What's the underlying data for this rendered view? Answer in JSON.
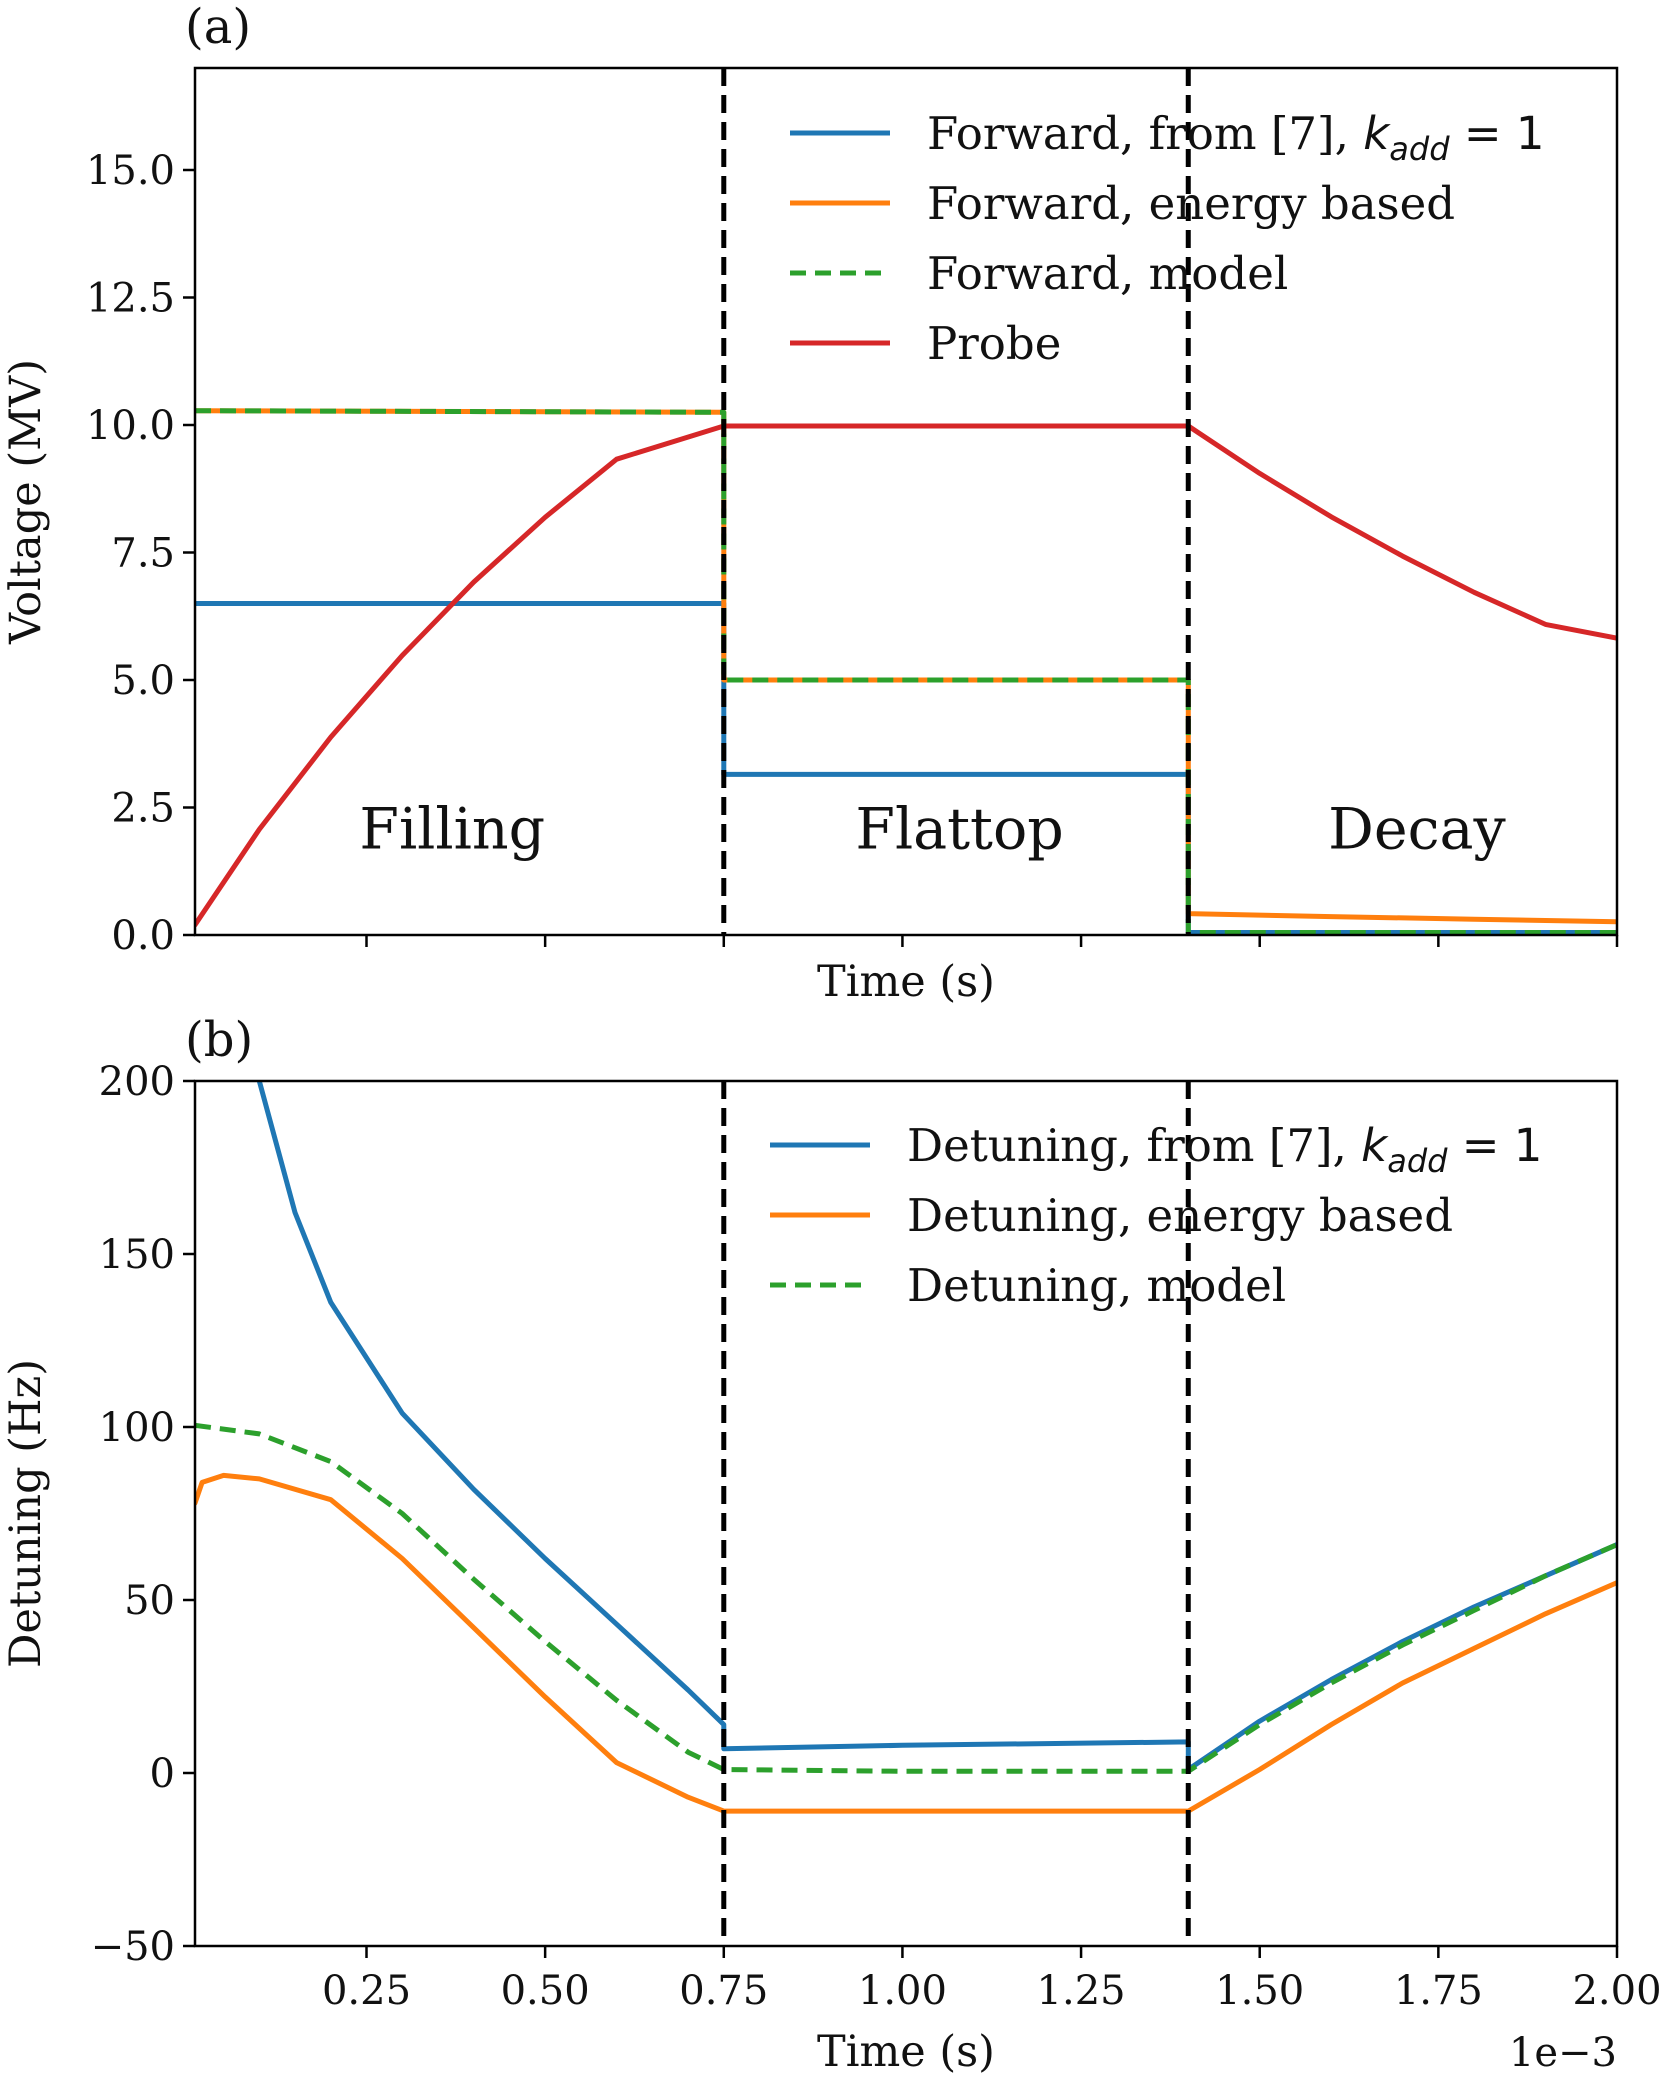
{
  "chart_data": [
    {
      "panel_tag": "(a)",
      "type": "line",
      "xlabel": "Time (s)",
      "ylabel": "Voltage (MV)",
      "xlim": [
        1e-05,
        0.002
      ],
      "ylim": [
        0,
        17
      ],
      "xticks": [
        0.00025,
        0.0005,
        0.00075,
        0.001,
        0.00125,
        0.0015,
        0.00175,
        0.002
      ],
      "show_xtick_labels": false,
      "yticks": [
        0,
        2.5,
        5.0,
        7.5,
        10.0,
        12.5,
        15.0
      ],
      "ytick_labels": [
        "0.0",
        "2.5",
        "5.0",
        "7.5",
        "10.0",
        "12.5",
        "15.0"
      ],
      "phase_boundaries": [
        0.00075,
        0.0014
      ],
      "phase_labels": [
        {
          "text": "Filling",
          "x": 0.00037,
          "y": 1.7
        },
        {
          "text": "Flattop",
          "x": 0.00108,
          "y": 1.7
        },
        {
          "text": "Decay",
          "x": 0.00172,
          "y": 1.7
        }
      ],
      "legend_position": "upper right",
      "series": [
        {
          "name": "Forward, from [7], ",
          "name_math": "k",
          "name_sub": "add",
          "name_suffix": " = 1",
          "color": "#1f77b4",
          "dash": "",
          "width": 5,
          "points": [
            [
              1e-05,
              6.5
            ],
            [
              0.00075,
              6.5
            ],
            [
              0.00075,
              3.15
            ],
            [
              0.0014,
              3.15
            ],
            [
              0.0014,
              0.05
            ],
            [
              0.002,
              0.05
            ]
          ]
        },
        {
          "name": "Forward, energy based",
          "color": "#ff7f0e",
          "dash": "",
          "width": 5,
          "points": [
            [
              1e-05,
              10.28
            ],
            [
              0.00075,
              10.25
            ],
            [
              0.00075,
              5.0
            ],
            [
              0.0014,
              5.0
            ],
            [
              0.0014,
              0.42
            ],
            [
              0.0016,
              0.36
            ],
            [
              0.0018,
              0.31
            ],
            [
              0.002,
              0.26
            ]
          ]
        },
        {
          "name": "Forward, model",
          "color": "#2ca02c",
          "dash": "16,9",
          "width": 5,
          "points": [
            [
              1e-05,
              10.28
            ],
            [
              0.00075,
              10.25
            ],
            [
              0.00075,
              5.0
            ],
            [
              0.0014,
              5.0
            ],
            [
              0.0014,
              0.05
            ],
            [
              0.002,
              0.05
            ]
          ]
        },
        {
          "name": "Probe",
          "color": "#d62728",
          "dash": "",
          "width": 5,
          "points": [
            [
              1e-05,
              0.2
            ],
            [
              0.0001,
              2.07
            ],
            [
              0.0002,
              3.88
            ],
            [
              0.0003,
              5.48
            ],
            [
              0.0004,
              6.92
            ],
            [
              0.0005,
              8.19
            ],
            [
              0.0006,
              9.33
            ],
            [
              0.00075,
              9.98
            ],
            [
              0.0014,
              9.98
            ],
            [
              0.0015,
              9.05
            ],
            [
              0.0016,
              8.2
            ],
            [
              0.0017,
              7.43
            ],
            [
              0.0018,
              6.72
            ],
            [
              0.0019,
              6.09
            ],
            [
              0.002,
              5.82
            ]
          ]
        }
      ]
    },
    {
      "panel_tag": "(b)",
      "type": "line",
      "xlabel": "Time (s)",
      "ylabel": "Detuning (Hz)",
      "offset_text": "1e−3",
      "xlim": [
        1e-05,
        0.002
      ],
      "ylim": [
        -50,
        200
      ],
      "xticks": [
        0.00025,
        0.0005,
        0.00075,
        0.001,
        0.00125,
        0.0015,
        0.00175,
        0.002
      ],
      "xtick_labels": [
        "0.25",
        "0.50",
        "0.75",
        "1.00",
        "1.25",
        "1.50",
        "1.75",
        "2.00"
      ],
      "yticks": [
        -50,
        0,
        50,
        100,
        150,
        200
      ],
      "ytick_labels": [
        "−50",
        "0",
        "50",
        "100",
        "150",
        "200"
      ],
      "phase_boundaries": [
        0.00075,
        0.0014
      ],
      "legend_position": "upper right",
      "series": [
        {
          "name": "Detuning, from [7], ",
          "name_math": "k",
          "name_sub": "add",
          "name_suffix": " = 1",
          "color": "#1f77b4",
          "dash": "",
          "width": 5,
          "points": [
            [
              0.0001,
              200
            ],
            [
              0.00015,
              162
            ],
            [
              0.0002,
              136
            ],
            [
              0.0003,
              104
            ],
            [
              0.0004,
              82
            ],
            [
              0.0005,
              62
            ],
            [
              0.0006,
              43
            ],
            [
              0.0007,
              24
            ],
            [
              0.00075,
              14
            ],
            [
              0.00075,
              7
            ],
            [
              0.001,
              8
            ],
            [
              0.0014,
              9
            ],
            [
              0.0014,
              1
            ],
            [
              0.0015,
              15
            ],
            [
              0.0016,
              27
            ],
            [
              0.0017,
              38
            ],
            [
              0.0018,
              48
            ],
            [
              0.0019,
              57
            ],
            [
              0.002,
              66
            ]
          ]
        },
        {
          "name": "Detuning, energy based",
          "color": "#ff7f0e",
          "dash": "",
          "width": 5,
          "points": [
            [
              1e-05,
              78
            ],
            [
              2e-05,
              84
            ],
            [
              5e-05,
              86
            ],
            [
              0.0001,
              85
            ],
            [
              0.0002,
              79
            ],
            [
              0.0003,
              62
            ],
            [
              0.0004,
              42
            ],
            [
              0.0005,
              22
            ],
            [
              0.0006,
              3
            ],
            [
              0.0007,
              -7
            ],
            [
              0.00075,
              -11
            ],
            [
              0.001,
              -11
            ],
            [
              0.0014,
              -11
            ],
            [
              0.0014,
              -11
            ],
            [
              0.0015,
              1
            ],
            [
              0.0016,
              14
            ],
            [
              0.0017,
              26
            ],
            [
              0.0018,
              36
            ],
            [
              0.0019,
              46
            ],
            [
              0.002,
              55
            ]
          ]
        },
        {
          "name": "Detuning, model",
          "color": "#2ca02c",
          "dash": "16,9",
          "width": 5,
          "points": [
            [
              1e-05,
              100.5
            ],
            [
              0.0001,
              98
            ],
            [
              0.0002,
              90
            ],
            [
              0.0003,
              75
            ],
            [
              0.0004,
              56
            ],
            [
              0.0005,
              38
            ],
            [
              0.0006,
              21
            ],
            [
              0.0007,
              6
            ],
            [
              0.00075,
              1
            ],
            [
              0.001,
              0.5
            ],
            [
              0.0014,
              0.5
            ],
            [
              0.0015,
              14
            ],
            [
              0.0016,
              26
            ],
            [
              0.0017,
              37
            ],
            [
              0.0018,
              47
            ],
            [
              0.0019,
              57
            ],
            [
              0.002,
              66
            ]
          ]
        }
      ]
    }
  ]
}
